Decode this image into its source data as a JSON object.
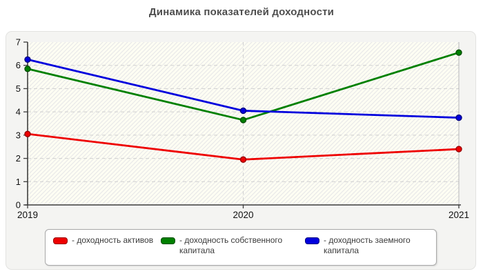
{
  "window": {
    "title": "Динамика показателей доходности"
  },
  "chart_data": {
    "type": "line",
    "title": "Динамика показателей доходности",
    "categories": [
      "2019",
      "2020",
      "2021"
    ],
    "series": [
      {
        "name": "- доходность активов",
        "color": "#ee0000",
        "point_border": "#990000",
        "values": [
          3.05,
          1.95,
          2.4
        ]
      },
      {
        "name": "- доходность собственного капитала",
        "color": "#008000",
        "point_border": "#004d00",
        "values": [
          5.85,
          3.65,
          6.55
        ]
      },
      {
        "name": "- доходность заемного капитала",
        "color": "#0000dd",
        "point_border": "#000080",
        "values": [
          6.25,
          4.05,
          3.75
        ]
      }
    ],
    "xlabel": "",
    "ylabel": "",
    "ylim": [
      0,
      7
    ],
    "y_ticks": [
      0,
      1,
      2,
      3,
      4,
      5,
      6,
      7
    ],
    "grid": "dashed",
    "legend_position": "bottom",
    "plot_bg": "#fdfdf3",
    "hatch_color": "#e7e7e7",
    "gridline_color": "#cfcfcf",
    "axis_color": "#3d3d3d",
    "tick_label_color": "#111111"
  }
}
